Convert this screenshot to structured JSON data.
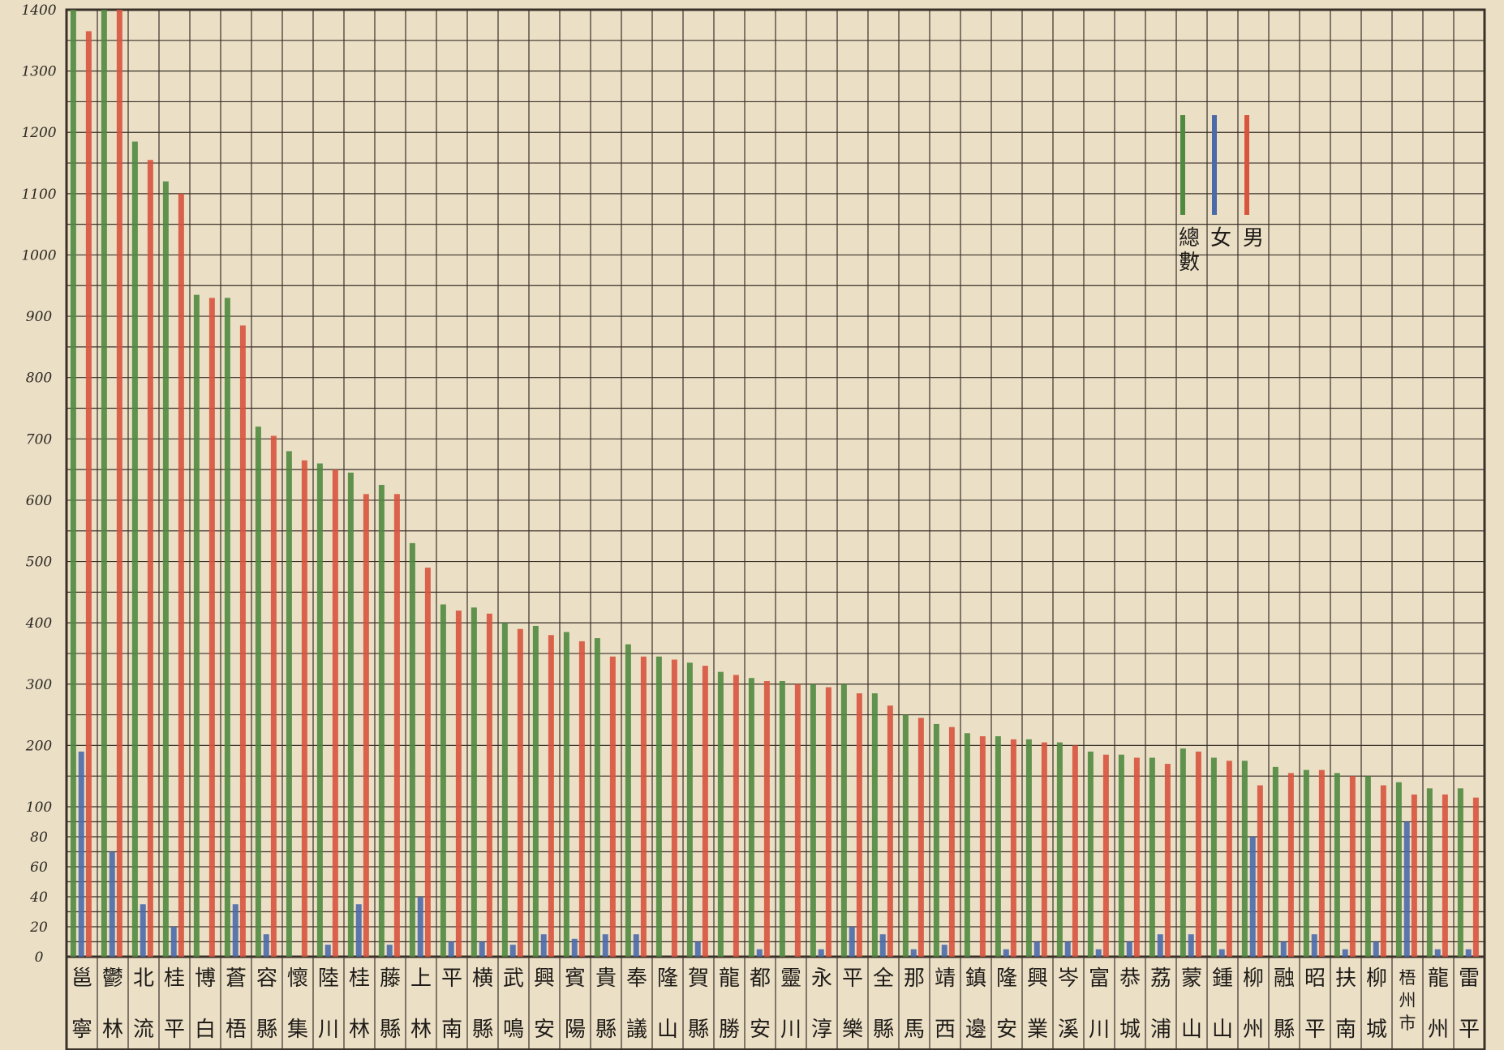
{
  "chart_data": {
    "type": "bar",
    "title": "",
    "xlabel": "",
    "ylabel": "",
    "grid": true,
    "legend_position": "top-right",
    "y_ticks": [
      "0",
      "20",
      "40",
      "60",
      "80",
      "100",
      "200",
      "300",
      "400",
      "500",
      "600",
      "700",
      "800",
      "900",
      "1000",
      "1100",
      "1200",
      "1300",
      "1400"
    ],
    "y_tick_values": [
      0,
      20,
      40,
      60,
      80,
      100,
      200,
      300,
      400,
      500,
      600,
      700,
      800,
      900,
      1000,
      1100,
      1200,
      1300,
      1400
    ],
    "categories": [
      "邕寧",
      "鬱林",
      "北流",
      "桂平",
      "博白",
      "蒼梧",
      "容縣",
      "懷集",
      "陸川",
      "桂林",
      "藤縣",
      "上林",
      "平南",
      "横縣",
      "武鳴",
      "興安",
      "賓陽",
      "貴縣",
      "奉議",
      "隆山",
      "賀縣",
      "龍勝",
      "都安",
      "靈川",
      "永淳",
      "平樂",
      "全縣",
      "那馬",
      "靖西",
      "鎮邊",
      "隆安",
      "興業",
      "岑溪",
      "富川",
      "恭城",
      "荔浦",
      "蒙山",
      "鍾山",
      "柳州",
      "融縣",
      "昭平",
      "扶南",
      "柳城",
      "梧州市",
      "龍州",
      "雷平"
    ],
    "series": [
      {
        "name": "總數",
        "color": "#4f8a3f",
        "values": [
          1400,
          1410,
          1185,
          1120,
          935,
          930,
          720,
          680,
          660,
          645,
          625,
          530,
          430,
          425,
          400,
          395,
          385,
          375,
          365,
          345,
          335,
          320,
          310,
          305,
          300,
          300,
          285,
          250,
          235,
          220,
          215,
          210,
          205,
          190,
          185,
          180,
          195,
          180,
          175,
          165,
          160,
          155,
          150,
          140,
          130,
          130
        ]
      },
      {
        "name": "女",
        "color": "#4a6aa8",
        "values": [
          190,
          70,
          35,
          20,
          0,
          35,
          15,
          0,
          8,
          35,
          8,
          40,
          10,
          10,
          8,
          15,
          12,
          15,
          15,
          0,
          10,
          0,
          5,
          0,
          5,
          20,
          15,
          5,
          8,
          0,
          5,
          10,
          10,
          5,
          10,
          15,
          15,
          5,
          80,
          10,
          15,
          5,
          10,
          90,
          5,
          5
        ]
      },
      {
        "name": "男",
        "color": "#d8543e",
        "values": [
          1365,
          1400,
          1155,
          1100,
          930,
          885,
          705,
          665,
          650,
          610,
          610,
          490,
          420,
          415,
          390,
          380,
          370,
          345,
          345,
          340,
          330,
          315,
          305,
          300,
          295,
          285,
          265,
          245,
          230,
          215,
          210,
          205,
          200,
          185,
          180,
          170,
          190,
          175,
          135,
          155,
          160,
          150,
          135,
          120,
          120,
          115
        ]
      }
    ]
  }
}
